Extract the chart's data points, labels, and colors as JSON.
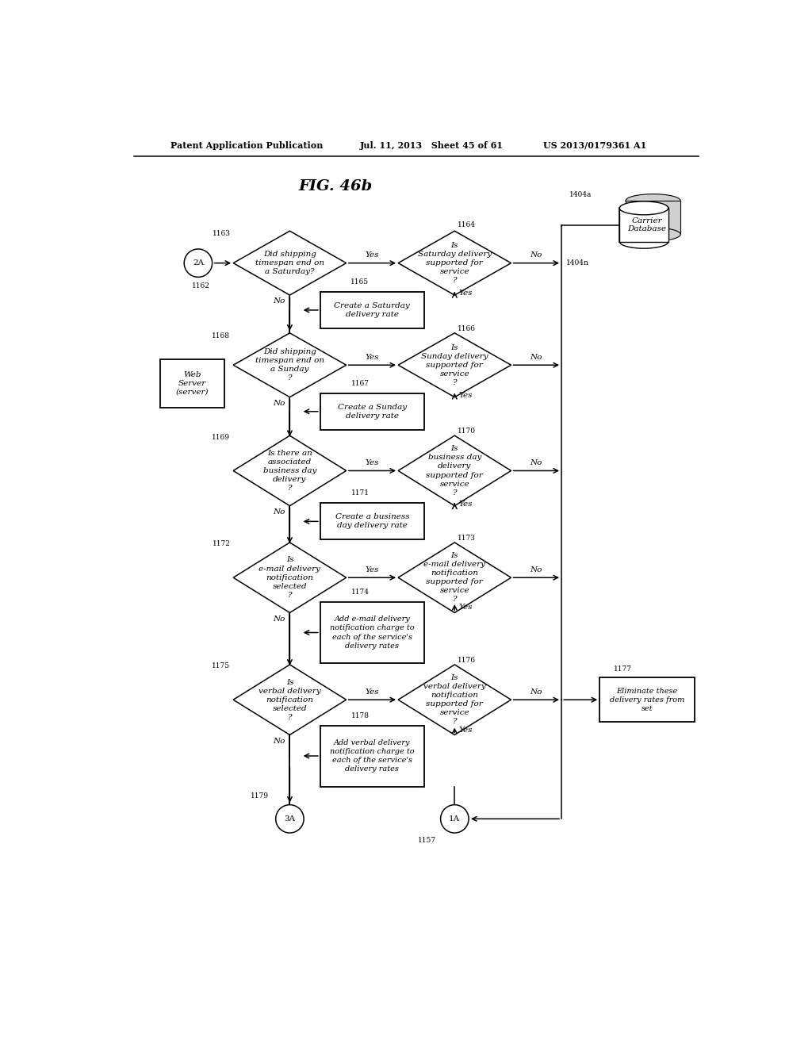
{
  "title": "FIG. 46b",
  "header_left": "Patent Application Publication",
  "header_mid": "Jul. 11, 2013   Sheet 45 of 61",
  "header_right": "US 2013/0179361 A1",
  "bg_color": "#ffffff",
  "fig_size": [
    10.24,
    13.2
  ],
  "dpi": 100,
  "xlim": [
    0,
    10.24
  ],
  "ylim": [
    0,
    13.2
  ]
}
